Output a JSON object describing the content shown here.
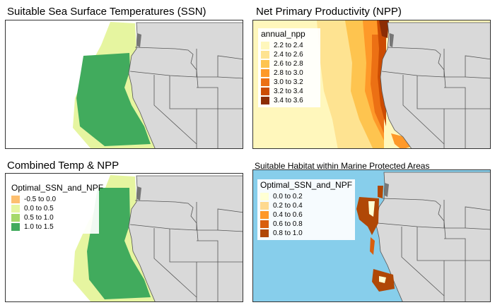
{
  "panels": [
    {
      "id": "ssn",
      "title": "Suitable Sea Surface Temperatures (SSN)",
      "legend": null
    },
    {
      "id": "npp",
      "title": "Net Primary Productivity (NPP)",
      "legend": {
        "title": "annual_npp",
        "items": [
          {
            "label": "2.2 to 2.4",
            "color": "#fff7bc"
          },
          {
            "label": "2.4 to 2.6",
            "color": "#fee391"
          },
          {
            "label": "2.6 to 2.8",
            "color": "#fec44f"
          },
          {
            "label": "2.8 to 3.0",
            "color": "#fe9929"
          },
          {
            "label": "3.0 to 3.2",
            "color": "#ec7014"
          },
          {
            "label": "3.2 to 3.4",
            "color": "#cc4c02"
          },
          {
            "label": "3.4 to 3.6",
            "color": "#8c2d04"
          }
        ]
      }
    },
    {
      "id": "combined",
      "title": "Combined Temp & NPP",
      "legend": {
        "title": "Optimal_SSN_and_NPF",
        "items": [
          {
            "label": "-0.5 to 0.0",
            "color": "#fdbf6f"
          },
          {
            "label": "0.0 to 0.5",
            "color": "#e6f5a0"
          },
          {
            "label": "0.5 to 1.0",
            "color": "#a6d96a"
          },
          {
            "label": "1.0 to 1.5",
            "color": "#41ab5d"
          }
        ]
      }
    },
    {
      "id": "mpa",
      "title": "Suitable Habitat within Marine Protected Areas",
      "legend": {
        "title": "Optimal_SSN_and_NPF",
        "items": [
          {
            "label": "0.0 to 0.2",
            "color": "#ffffd4"
          },
          {
            "label": "0.2 to 0.4",
            "color": "#fed98e"
          },
          {
            "label": "0.4 to 0.6",
            "color": "#fe9929"
          },
          {
            "label": "0.6 to 0.8",
            "color": "#d95f0e"
          },
          {
            "label": "0.8 to 1.0",
            "color": "#b04806"
          }
        ]
      }
    }
  ],
  "colors": {
    "land": "#d9d9d9",
    "state_border": "#555555",
    "ocean_mpa": "#87ceeb",
    "ssn_band": "#e6f5a0",
    "ssn_fill": "#41ab5d",
    "islands": "#777777"
  }
}
